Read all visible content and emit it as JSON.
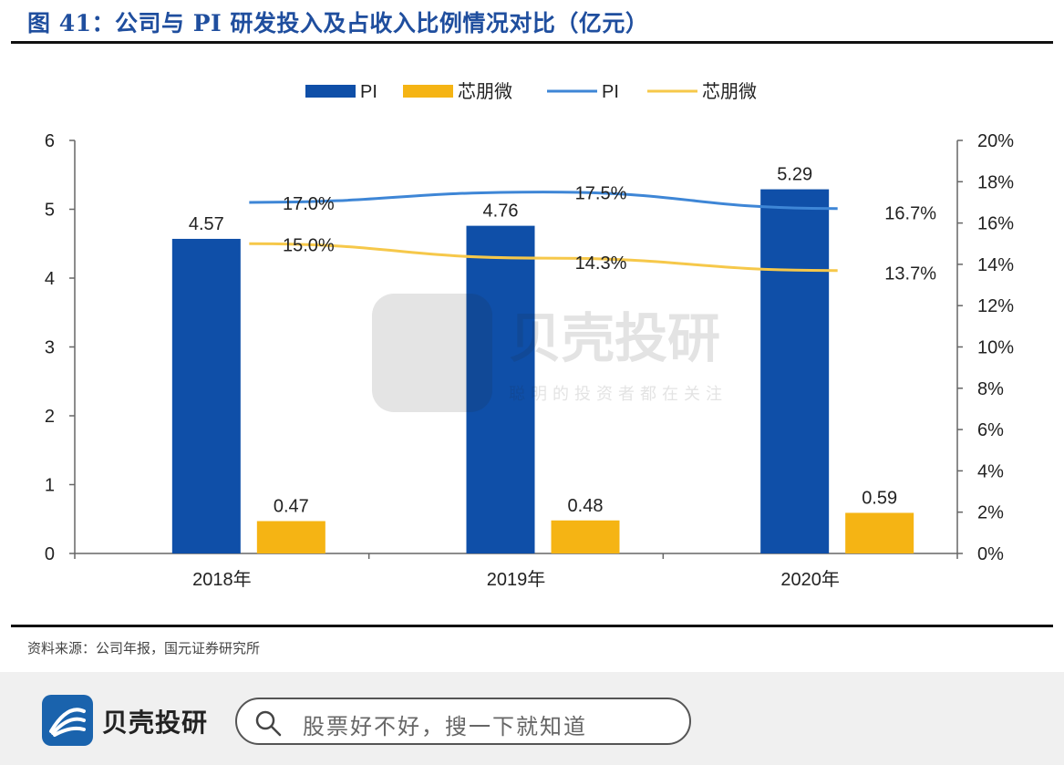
{
  "title": "图 41：公司与 PI 研发投入及占收入比例情况对比（亿元）",
  "source": "资料来源：公司年报，国元证券研究所",
  "footer": {
    "brand": "贝壳投研",
    "search_placeholder": "股票好不好，搜一下就知道"
  },
  "watermark": {
    "text": "贝壳投研",
    "sub": "聪明的投资者都在关注"
  },
  "colors": {
    "pi_bar": "#0f4fa8",
    "xinpengwei_bar": "#f5b414",
    "pi_line": "#3e86d6",
    "xinpengwei_line": "#f6c84a",
    "title": "#1f4e9e"
  },
  "chart_data": {
    "type": "bar",
    "categories": [
      "2018年",
      "2019年",
      "2020年"
    ],
    "ylim_left": [
      0,
      6
    ],
    "yticks_left": [
      "0",
      "1",
      "2",
      "3",
      "4",
      "5",
      "6"
    ],
    "ylim_right": [
      0,
      20
    ],
    "yticks_right": [
      "0%",
      "2%",
      "4%",
      "6%",
      "8%",
      "10%",
      "12%",
      "14%",
      "16%",
      "18%",
      "20%"
    ],
    "legend_position": "top-center",
    "bar_series": [
      {
        "name": "PI",
        "values": [
          4.57,
          4.76,
          5.29
        ],
        "labels": [
          "4.57",
          "4.76",
          "5.29"
        ]
      },
      {
        "name": "芯朋微",
        "values": [
          0.47,
          0.48,
          0.59
        ],
        "labels": [
          "0.47",
          "0.48",
          "0.59"
        ]
      }
    ],
    "line_series": [
      {
        "name": "PI",
        "axis": "right",
        "values": [
          17.0,
          17.5,
          16.7
        ],
        "labels": [
          "17.0%",
          "17.5%",
          "16.7%"
        ]
      },
      {
        "name": "芯朋微",
        "axis": "right",
        "values": [
          15.0,
          14.3,
          13.7
        ],
        "labels": [
          "15.0%",
          "14.3%",
          "13.7%"
        ]
      }
    ]
  }
}
